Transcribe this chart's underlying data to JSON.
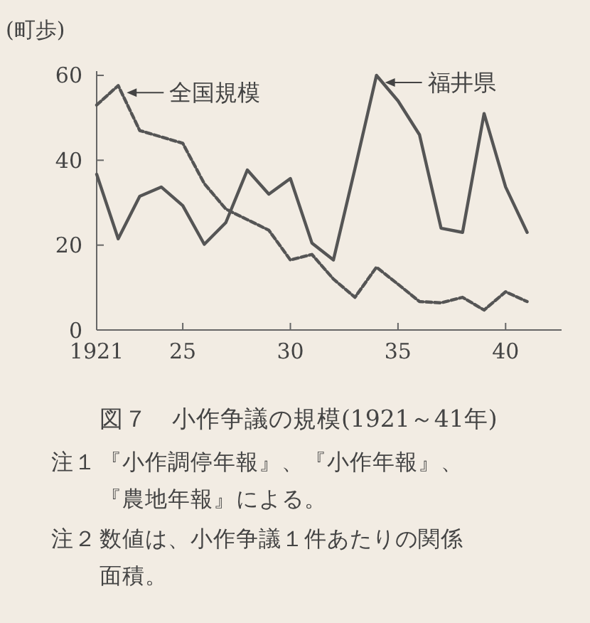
{
  "chart_data": {
    "type": "line",
    "title": "図７　小作争議の規模(1921～41年)",
    "ylabel": "(町歩)",
    "x": [
      1921,
      1922,
      1923,
      1924,
      1925,
      1926,
      1927,
      1928,
      1929,
      1930,
      1931,
      1932,
      1933,
      1934,
      1935,
      1936,
      1937,
      1938,
      1939,
      1940,
      1941
    ],
    "series": [
      {
        "name": "全国規模",
        "color": "#555555",
        "line_style": "dashed",
        "values": [
          53,
          57.6,
          47,
          45.5,
          44,
          34.5,
          28.5,
          26,
          23.5,
          16.5,
          17.8,
          12,
          7.7,
          14.8,
          10.8,
          6.7,
          6.4,
          7.7,
          4.7,
          9,
          6.7
        ]
      },
      {
        "name": "福井県",
        "color": "#555555",
        "line_style": "solid",
        "values": [
          36.7,
          21.5,
          31.5,
          33.7,
          29.3,
          20.2,
          25.3,
          37.7,
          32,
          35.7,
          20.5,
          16.5,
          38,
          60,
          54,
          46,
          24,
          23,
          51,
          33.7,
          23
        ]
      }
    ],
    "xlim": [
      1921,
      1942.6
    ],
    "ylim": [
      0,
      61
    ],
    "xticks": [
      1921,
      {
        "value": 1925,
        "label": "25"
      },
      {
        "value": 1930,
        "label": "30"
      },
      {
        "value": 1935,
        "label": "35"
      },
      {
        "value": 1940,
        "label": "40"
      }
    ],
    "yticks": [
      0,
      20,
      40,
      60
    ],
    "grid": false,
    "annotations": [
      "注１　『小作調停年報』、『小作年報』、『農地年報』による。",
      "注２　数値は、小作争議１件あたりの関係面積。"
    ]
  }
}
